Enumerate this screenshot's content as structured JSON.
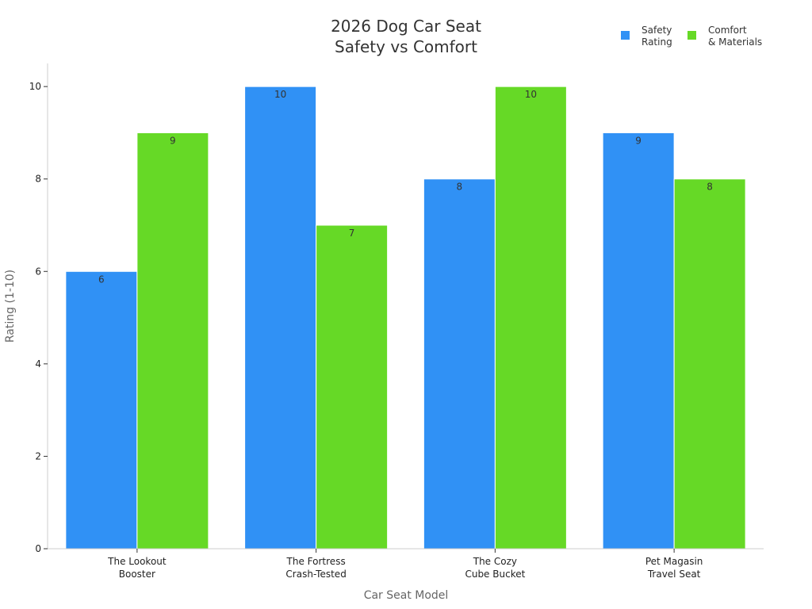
{
  "chart_data": {
    "type": "bar",
    "title_lines": [
      "2026 Dog Car Seat",
      "Safety vs Comfort"
    ],
    "xlabel": "Car Seat Model",
    "ylabel": "Rating (1-10)",
    "ylim": [
      0,
      10.5
    ],
    "yticks": [
      0,
      2,
      4,
      6,
      8,
      10
    ],
    "categories": [
      [
        "The Lookout",
        "Booster"
      ],
      [
        "The Fortress",
        "Crash-Tested"
      ],
      [
        "The Cozy",
        "Cube Bucket"
      ],
      [
        "Pet Magasin",
        "Travel Seat"
      ]
    ],
    "series": [
      {
        "name_lines": [
          "Safety",
          "Rating"
        ],
        "color": "#3091F5",
        "values": [
          6,
          10,
          8,
          9
        ]
      },
      {
        "name_lines": [
          "Comfort",
          "& Materials"
        ],
        "color": "#66D926",
        "values": [
          9,
          7,
          10,
          8
        ]
      }
    ],
    "legend_position": "top-right",
    "grid": false
  }
}
